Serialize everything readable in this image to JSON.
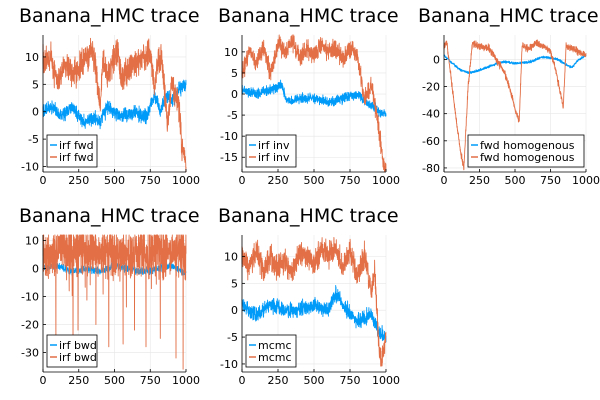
{
  "colors": {
    "series1": "#009AF9",
    "series2": "#E26F46",
    "grid": "#e6e6e6",
    "axis": "#000000"
  },
  "chart_data": [
    {
      "type": "line",
      "title": "Banana_HMC trace",
      "xlim": [
        0,
        1000
      ],
      "ylim": [
        -11,
        14
      ],
      "xticks": [
        0,
        250,
        500,
        750,
        1000
      ],
      "yticks": [
        -10,
        -5,
        0,
        5,
        10
      ],
      "legend_position": "bottom-left",
      "series": [
        {
          "name": "irf fwd",
          "trend": [
            [
              0,
              0
            ],
            [
              60,
              1
            ],
            [
              120,
              -1
            ],
            [
              200,
              1
            ],
            [
              280,
              -2
            ],
            [
              360,
              -1
            ],
            [
              400,
              -2
            ],
            [
              450,
              1
            ],
            [
              550,
              -1
            ],
            [
              650,
              0
            ],
            [
              720,
              -1
            ],
            [
              780,
              3
            ],
            [
              820,
              0
            ],
            [
              860,
              3
            ],
            [
              900,
              2
            ],
            [
              950,
              4
            ],
            [
              1000,
              5
            ]
          ],
          "noise": 1.0
        },
        {
          "name": "irf fwd",
          "trend": [
            [
              0,
              9
            ],
            [
              60,
              10
            ],
            [
              100,
              5
            ],
            [
              150,
              9
            ],
            [
              200,
              7
            ],
            [
              250,
              8
            ],
            [
              300,
              10
            ],
            [
              350,
              11
            ],
            [
              400,
              1
            ],
            [
              420,
              10
            ],
            [
              450,
              6
            ],
            [
              480,
              9
            ],
            [
              520,
              11
            ],
            [
              550,
              6
            ],
            [
              600,
              8
            ],
            [
              650,
              9
            ],
            [
              700,
              10
            ],
            [
              750,
              11
            ],
            [
              780,
              4
            ],
            [
              800,
              9
            ],
            [
              830,
              10
            ],
            [
              870,
              -2
            ],
            [
              900,
              5
            ],
            [
              950,
              1
            ],
            [
              970,
              -6
            ],
            [
              1000,
              -10
            ]
          ],
          "noise": 2.0
        }
      ]
    },
    {
      "type": "line",
      "title": "Banana_HMC trace",
      "xlim": [
        0,
        1000
      ],
      "ylim": [
        -18.5,
        14
      ],
      "xticks": [
        0,
        250,
        500,
        750,
        1000
      ],
      "yticks": [
        -15,
        -10,
        -5,
        0,
        5,
        10
      ],
      "legend_position": "bottom-left",
      "series": [
        {
          "name": "irf inv",
          "trend": [
            [
              0,
              1
            ],
            [
              100,
              0
            ],
            [
              200,
              1
            ],
            [
              280,
              2
            ],
            [
              300,
              -1
            ],
            [
              350,
              -2
            ],
            [
              400,
              -1
            ],
            [
              500,
              -1
            ],
            [
              600,
              -2
            ],
            [
              700,
              -1
            ],
            [
              800,
              0
            ],
            [
              900,
              -3
            ],
            [
              950,
              -4
            ],
            [
              1000,
              -5
            ]
          ],
          "noise": 0.9
        },
        {
          "name": "irf inv",
          "trend": [
            [
              0,
              5
            ],
            [
              50,
              10
            ],
            [
              100,
              7
            ],
            [
              150,
              11
            ],
            [
              200,
              5
            ],
            [
              250,
              12
            ],
            [
              300,
              10
            ],
            [
              350,
              13
            ],
            [
              400,
              8
            ],
            [
              450,
              11
            ],
            [
              500,
              9
            ],
            [
              550,
              12
            ],
            [
              600,
              10
            ],
            [
              650,
              11
            ],
            [
              700,
              8
            ],
            [
              750,
              11
            ],
            [
              800,
              9
            ],
            [
              850,
              -1
            ],
            [
              900,
              2
            ],
            [
              950,
              -8
            ],
            [
              980,
              -16
            ],
            [
              1000,
              -18
            ]
          ],
          "noise": 1.8
        }
      ]
    },
    {
      "type": "line",
      "title": "Banana_HMC trace",
      "xlim": [
        0,
        1000
      ],
      "ylim": [
        -83,
        18
      ],
      "xticks": [
        0,
        250,
        500,
        750,
        1000
      ],
      "yticks": [
        -80,
        -60,
        -40,
        -20,
        0
      ],
      "legend_position": "bottom-right",
      "series": [
        {
          "name": "fwd homogenous",
          "trend": [
            [
              0,
              3
            ],
            [
              60,
              -3
            ],
            [
              120,
              -8
            ],
            [
              180,
              -10
            ],
            [
              250,
              -8
            ],
            [
              300,
              -6
            ],
            [
              350,
              -4
            ],
            [
              400,
              -2
            ],
            [
              450,
              -2
            ],
            [
              500,
              -3
            ],
            [
              600,
              -2
            ],
            [
              700,
              2
            ],
            [
              800,
              0
            ],
            [
              850,
              -3
            ],
            [
              900,
              -6
            ],
            [
              950,
              0
            ],
            [
              1000,
              3
            ]
          ],
          "noise": 0.7
        },
        {
          "name": "fwd homogenous",
          "trend": [
            [
              0,
              10
            ],
            [
              20,
              12
            ],
            [
              40,
              -5
            ],
            [
              80,
              -40
            ],
            [
              120,
              -70
            ],
            [
              140,
              -80
            ],
            [
              170,
              -20
            ],
            [
              200,
              12
            ],
            [
              240,
              10
            ],
            [
              320,
              8
            ],
            [
              380,
              -2
            ],
            [
              420,
              -8
            ],
            [
              460,
              -20
            ],
            [
              510,
              -40
            ],
            [
              530,
              -45
            ],
            [
              550,
              10
            ],
            [
              600,
              8
            ],
            [
              650,
              12
            ],
            [
              700,
              10
            ],
            [
              750,
              5
            ],
            [
              780,
              -5
            ],
            [
              810,
              -20
            ],
            [
              840,
              -35
            ],
            [
              860,
              10
            ],
            [
              900,
              8
            ],
            [
              950,
              5
            ],
            [
              1000,
              3
            ]
          ],
          "noise": 2.0
        }
      ]
    },
    {
      "type": "line",
      "title": "Banana_HMC trace",
      "xlim": [
        0,
        1000
      ],
      "ylim": [
        -37,
        12
      ],
      "xticks": [
        0,
        250,
        500,
        750,
        1000
      ],
      "yticks": [
        -30,
        -20,
        -10,
        0,
        10
      ],
      "legend_position": "bottom-left",
      "series": [
        {
          "name": "irf bwd",
          "trend": [
            [
              0,
              0
            ],
            [
              100,
              1
            ],
            [
              200,
              -1
            ],
            [
              300,
              0
            ],
            [
              400,
              -1
            ],
            [
              500,
              1
            ],
            [
              600,
              0
            ],
            [
              700,
              -1
            ],
            [
              800,
              0
            ],
            [
              900,
              1
            ],
            [
              1000,
              -2
            ]
          ],
          "noise": 1.0
        },
        {
          "name": "irf bwd",
          "trend": [
            [
              0,
              6
            ],
            [
              1000,
              6
            ]
          ],
          "noise": 7.0,
          "spikes": [
            [
              90,
              -25
            ],
            [
              210,
              -30
            ],
            [
              245,
              -22
            ],
            [
              370,
              -20
            ],
            [
              460,
              -28
            ],
            [
              560,
              -27
            ],
            [
              640,
              -22
            ],
            [
              720,
              -28
            ],
            [
              820,
              -25
            ],
            [
              930,
              -32
            ],
            [
              980,
              -36
            ]
          ]
        }
      ]
    },
    {
      "type": "line",
      "title": "Banana_HMC trace",
      "xlim": [
        0,
        1000
      ],
      "ylim": [
        -11.5,
        14
      ],
      "xticks": [
        0,
        250,
        500,
        750,
        1000
      ],
      "yticks": [
        -10,
        -5,
        0,
        5,
        10
      ],
      "legend_position": "bottom-left",
      "series": [
        {
          "name": "mcmc",
          "trend": [
            [
              0,
              1
            ],
            [
              100,
              -1
            ],
            [
              200,
              1
            ],
            [
              300,
              0
            ],
            [
              400,
              0
            ],
            [
              500,
              1
            ],
            [
              600,
              0
            ],
            [
              650,
              3
            ],
            [
              700,
              1
            ],
            [
              800,
              -2
            ],
            [
              900,
              -1
            ],
            [
              950,
              -4
            ],
            [
              1000,
              -5
            ]
          ],
          "noise": 1.1
        },
        {
          "name": "mcmc",
          "trend": [
            [
              0,
              10
            ],
            [
              50,
              8
            ],
            [
              100,
              11
            ],
            [
              150,
              7
            ],
            [
              200,
              10
            ],
            [
              250,
              8
            ],
            [
              300,
              9
            ],
            [
              350,
              7
            ],
            [
              400,
              11
            ],
            [
              450,
              10
            ],
            [
              500,
              9
            ],
            [
              550,
              11
            ],
            [
              600,
              10
            ],
            [
              650,
              12
            ],
            [
              700,
              8
            ],
            [
              750,
              11
            ],
            [
              800,
              6
            ],
            [
              850,
              10
            ],
            [
              900,
              3
            ],
            [
              920,
              8
            ],
            [
              950,
              -6
            ],
            [
              970,
              -10
            ],
            [
              1000,
              -5
            ]
          ],
          "noise": 1.8
        }
      ]
    }
  ]
}
